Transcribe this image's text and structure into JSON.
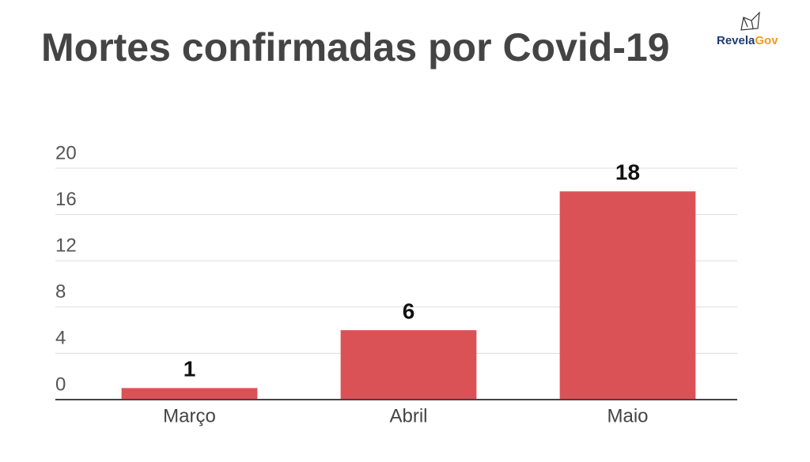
{
  "chart_data": {
    "type": "bar",
    "title": "Mortes confirmadas por Covid-19",
    "categories": [
      "Março",
      "Abril",
      "Maio"
    ],
    "values": [
      1,
      6,
      18
    ],
    "color": "#db5256",
    "ylim": [
      0,
      20
    ],
    "yticks": [
      0,
      4,
      8,
      12,
      16,
      20
    ],
    "grid": true
  },
  "logo": {
    "part1": "Revela",
    "part2": "Gov"
  }
}
